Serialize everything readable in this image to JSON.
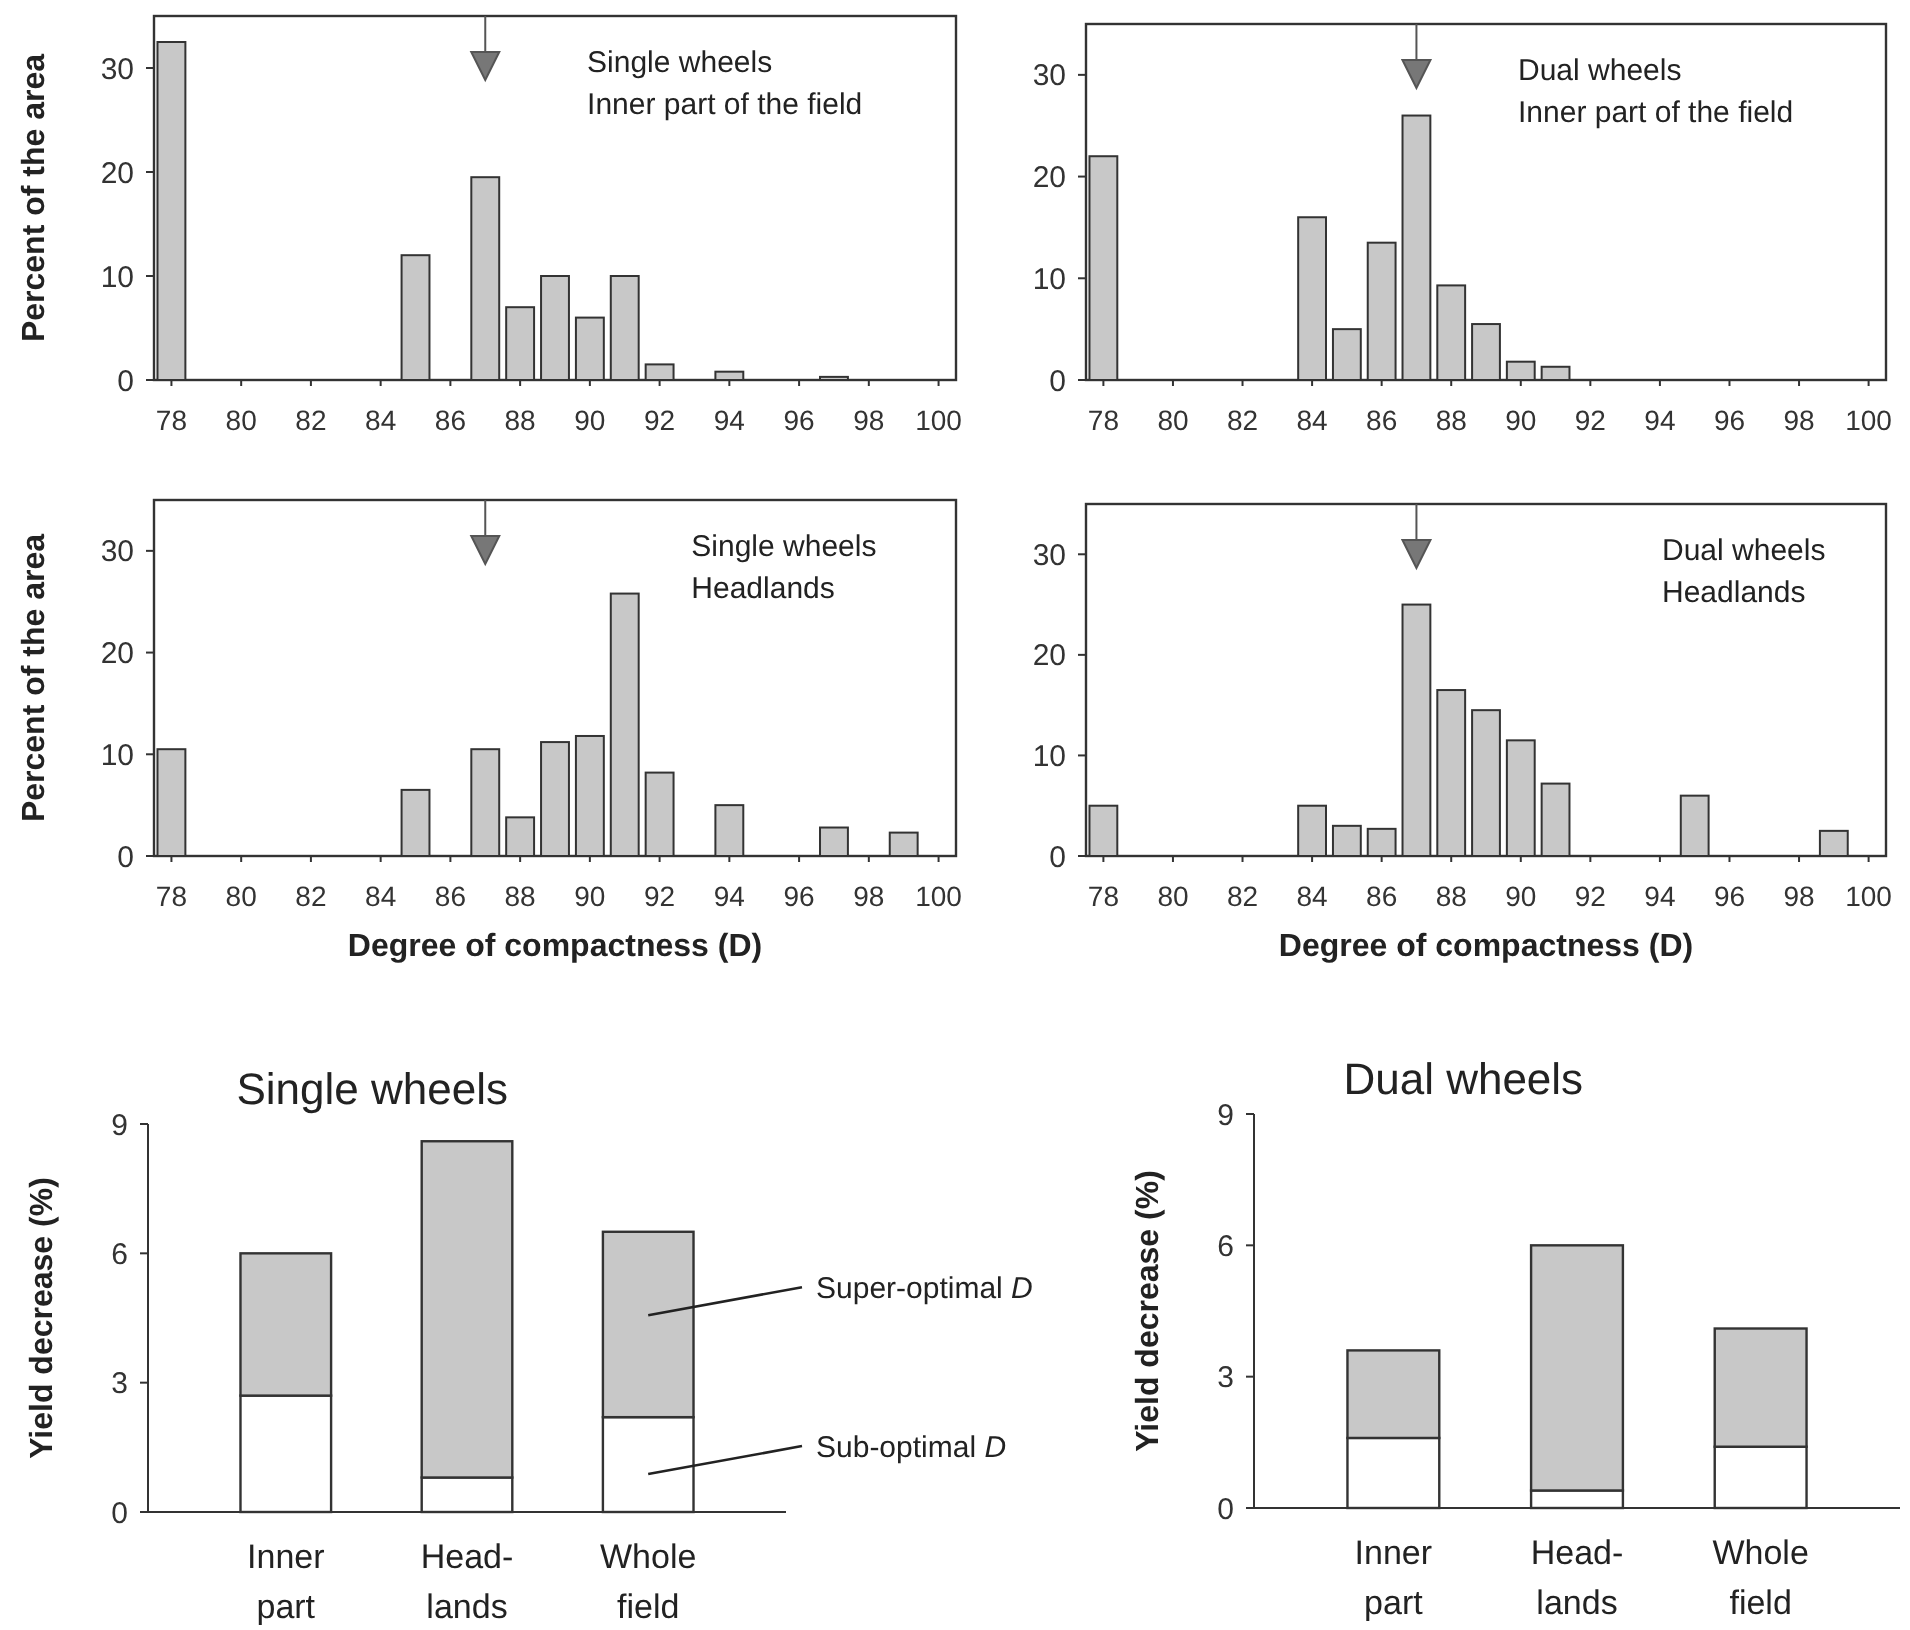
{
  "chart_data": [
    {
      "type": "bar",
      "title": "Single wheels\nInner part of the field",
      "ylabel": "Percent of the area",
      "x": [
        78,
        85,
        87,
        88,
        89,
        90,
        91,
        92,
        94,
        97
      ],
      "values": [
        32.5,
        12,
        19.5,
        7,
        10,
        6,
        10,
        1.5,
        0.8,
        0.3
      ],
      "color": "#c8c8c8",
      "xlim": [
        77.5,
        100.5
      ],
      "xticks": [
        78,
        80,
        82,
        84,
        86,
        88,
        90,
        92,
        94,
        96,
        98,
        100
      ],
      "ylim": [
        0,
        35
      ],
      "yticks": [
        0,
        10,
        20,
        30
      ],
      "ref_lines": [
        {
          "axis": "x",
          "value": 87
        }
      ]
    },
    {
      "type": "bar",
      "title": "Dual wheels\nInner part of the field",
      "x": [
        78,
        84,
        85,
        86,
        87,
        88,
        89,
        90,
        91
      ],
      "values": [
        22,
        16,
        5,
        13.5,
        26,
        9.3,
        5.5,
        1.8,
        1.3
      ],
      "color": "#c8c8c8",
      "xlim": [
        77.5,
        100.5
      ],
      "xticks": [
        78,
        80,
        82,
        84,
        86,
        88,
        90,
        92,
        94,
        96,
        98,
        100
      ],
      "ylim": [
        0,
        35
      ],
      "yticks": [
        0,
        10,
        20,
        30
      ],
      "ref_lines": [
        {
          "axis": "x",
          "value": 87
        }
      ]
    },
    {
      "type": "bar",
      "title": "Single wheels\nHeadlands",
      "xlabel": "Degree of compactness (D)",
      "ylabel": "Percent of the area",
      "x": [
        78,
        85,
        87,
        88,
        89,
        90,
        91,
        92,
        94,
        97,
        99
      ],
      "values": [
        10.5,
        6.5,
        10.5,
        3.8,
        11.2,
        11.8,
        25.8,
        8.2,
        5,
        2.8,
        2.3
      ],
      "color": "#c8c8c8",
      "xlim": [
        77.5,
        100.5
      ],
      "xticks": [
        78,
        80,
        82,
        84,
        86,
        88,
        90,
        92,
        94,
        96,
        98,
        100
      ],
      "ylim": [
        0,
        35
      ],
      "yticks": [
        0,
        10,
        20,
        30
      ],
      "ref_lines": [
        {
          "axis": "x",
          "value": 87
        }
      ]
    },
    {
      "type": "bar",
      "title": "Dual wheels\nHeadlands",
      "xlabel": "Degree of compactness (D)",
      "x": [
        78,
        84,
        85,
        86,
        87,
        88,
        89,
        90,
        91,
        95,
        99
      ],
      "values": [
        5,
        5,
        3,
        2.7,
        25,
        16.5,
        14.5,
        11.5,
        7.2,
        6,
        2.5
      ],
      "color": "#c8c8c8",
      "xlim": [
        77.5,
        100.5
      ],
      "xticks": [
        78,
        80,
        82,
        84,
        86,
        88,
        90,
        92,
        94,
        96,
        98,
        100
      ],
      "ylim": [
        0,
        35
      ],
      "yticks": [
        0,
        10,
        20,
        30
      ],
      "ref_lines": [
        {
          "axis": "x",
          "value": 87
        }
      ]
    },
    {
      "type": "bar",
      "title": "Single wheels",
      "ylabel": "Yield decrease (%)",
      "categories": [
        "Inner\npart",
        "Head-\nlands",
        "Whole\nfield"
      ],
      "stacked": true,
      "legend": "right",
      "ylim": [
        0,
        9
      ],
      "yticks": [
        0,
        3,
        6,
        9
      ],
      "series": [
        {
          "name": "Sub-optimal D",
          "color": "#ffffff",
          "values": [
            2.7,
            0.8,
            2.2
          ]
        },
        {
          "name": "Super-optimal D",
          "color": "#c8c8c8",
          "values": [
            3.3,
            7.8,
            4.3
          ]
        }
      ]
    },
    {
      "type": "bar",
      "title": "Dual wheels",
      "ylabel": "Yield decrease (%)",
      "categories": [
        "Inner\npart",
        "Head-\nlands",
        "Whole\nfield"
      ],
      "stacked": true,
      "ylim": [
        0,
        9
      ],
      "yticks": [
        0,
        3,
        6,
        9
      ],
      "series": [
        {
          "color": "#ffffff",
          "values": [
            1.6,
            0.4,
            1.4
          ]
        },
        {
          "color": "#c8c8c8",
          "values": [
            2.0,
            5.6,
            2.7
          ]
        }
      ]
    }
  ]
}
